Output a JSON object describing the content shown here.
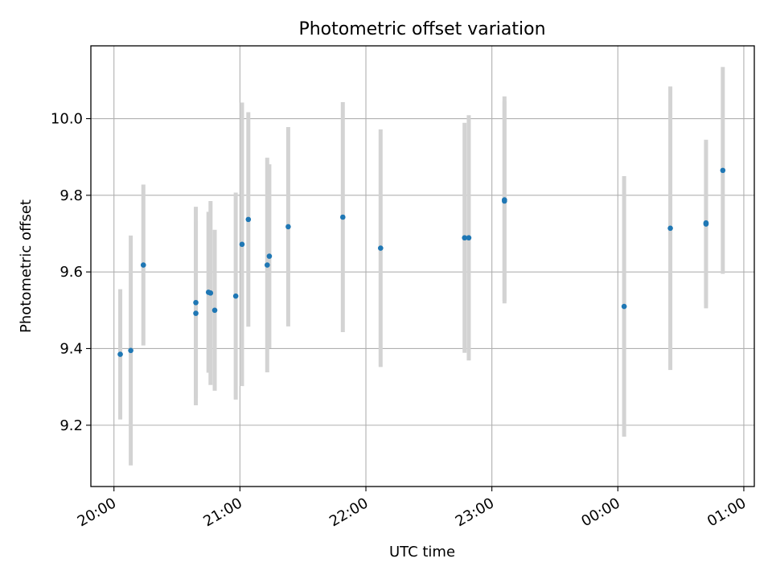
{
  "chart_data": {
    "type": "scatter",
    "title": "Photometric offset variation",
    "xlabel": "UTC time",
    "ylabel": "Photometric offset",
    "x_axis": "time (hh:mm, minutes after 20:00 shown as clock times)",
    "x_ticks": [
      "20:00",
      "21:00",
      "22:00",
      "23:00",
      "00:00",
      "01:00"
    ],
    "y_ticks": [
      "9.2",
      "9.4",
      "9.6",
      "9.8",
      "10.0"
    ],
    "xlim": [
      "19:49",
      "01:05"
    ],
    "ylim": [
      9.04,
      10.19
    ],
    "grid": true,
    "colors": {
      "point": "#1f77b4",
      "error_bar": "#d3d3d3",
      "grid": "#b0b0b0"
    },
    "points": [
      {
        "x": "20:03",
        "y": 9.385,
        "err": 0.17
      },
      {
        "x": "20:08",
        "y": 9.395,
        "err": 0.3
      },
      {
        "x": "20:14",
        "y": 9.618,
        "err": 0.21
      },
      {
        "x": "20:39",
        "y": 9.52,
        "err": 0.25
      },
      {
        "x": "20:39",
        "y": 9.492,
        "err": 0.24
      },
      {
        "x": "20:45",
        "y": 9.547,
        "err": 0.21
      },
      {
        "x": "20:46",
        "y": 9.545,
        "err": 0.24
      },
      {
        "x": "20:48",
        "y": 9.5,
        "err": 0.21
      },
      {
        "x": "20:58",
        "y": 9.537,
        "err": 0.27
      },
      {
        "x": "21:01",
        "y": 9.672,
        "err": 0.37
      },
      {
        "x": "21:04",
        "y": 9.737,
        "err": 0.28
      },
      {
        "x": "21:13",
        "y": 9.618,
        "err": 0.28
      },
      {
        "x": "21:14",
        "y": 9.641,
        "err": 0.24
      },
      {
        "x": "21:23",
        "y": 9.718,
        "err": 0.26
      },
      {
        "x": "21:49",
        "y": 9.743,
        "err": 0.3
      },
      {
        "x": "22:07",
        "y": 9.662,
        "err": 0.31
      },
      {
        "x": "22:47",
        "y": 9.689,
        "err": 0.3
      },
      {
        "x": "22:49",
        "y": 9.689,
        "err": 0.32
      },
      {
        "x": "23:06",
        "y": 9.788,
        "err": 0.27
      },
      {
        "x": "23:06",
        "y": 9.785,
        "err": 0.26
      },
      {
        "x": "00:03",
        "y": 9.51,
        "err": 0.34
      },
      {
        "x": "00:25",
        "y": 9.714,
        "err": 0.37
      },
      {
        "x": "00:42",
        "y": 9.725,
        "err": 0.22
      },
      {
        "x": "00:42",
        "y": 9.728,
        "err": 0.21
      },
      {
        "x": "00:50",
        "y": 9.865,
        "err": 0.27
      }
    ]
  }
}
